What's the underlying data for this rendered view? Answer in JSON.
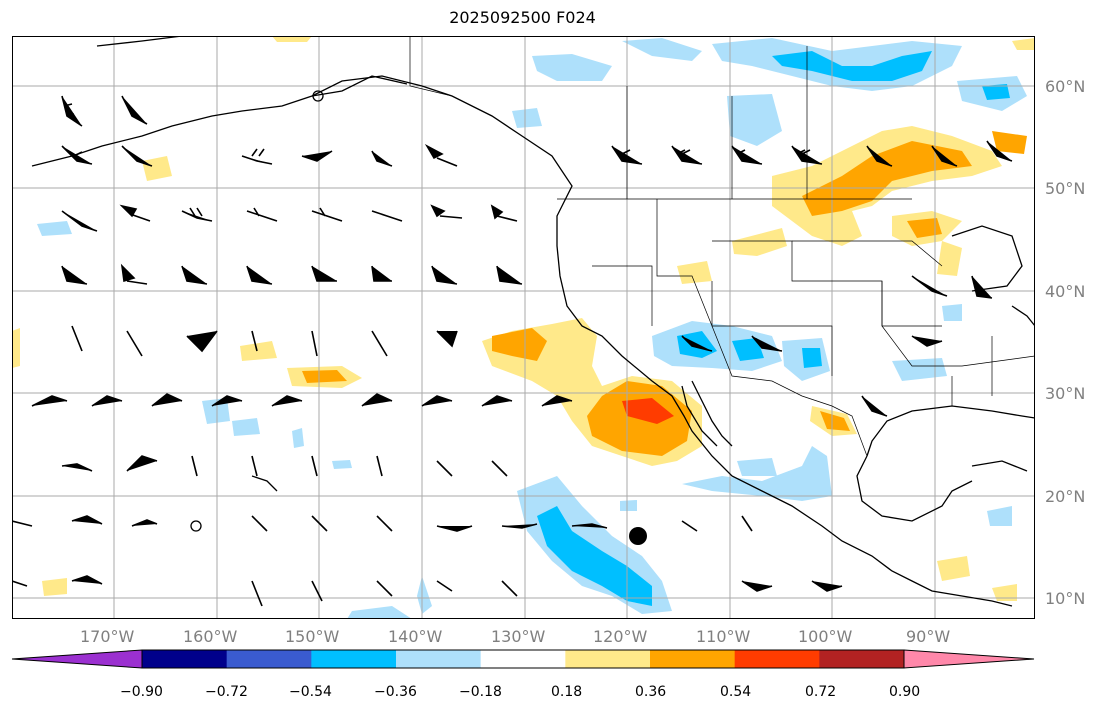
{
  "title": "2025092500 F024",
  "lon_ticks": [
    "170°W",
    "160°W",
    "150°W",
    "140°W",
    "130°W",
    "120°W",
    "110°W",
    "100°W",
    "90°W"
  ],
  "lat_ticks": [
    "60°N",
    "50°N",
    "40°N",
    "30°N",
    "20°N",
    "10°N"
  ],
  "colorbar": {
    "labels": [
      "−0.90",
      "−0.72",
      "−0.54",
      "−0.36",
      "−0.18",
      "0.18",
      "0.36",
      "0.54",
      "0.72",
      "0.90"
    ],
    "colors": [
      "#9b30d0",
      "#00008b",
      "#3a5bd0",
      "#00bfff",
      "#aee0fb",
      "#ffffff",
      "#ffe98a",
      "#ffa500",
      "#ff3c00",
      "#b22222",
      "#ff88aa"
    ]
  },
  "colors": {
    "grid": "#aaaaaa",
    "coast": "#000000",
    "tick_label": "#808080"
  }
}
